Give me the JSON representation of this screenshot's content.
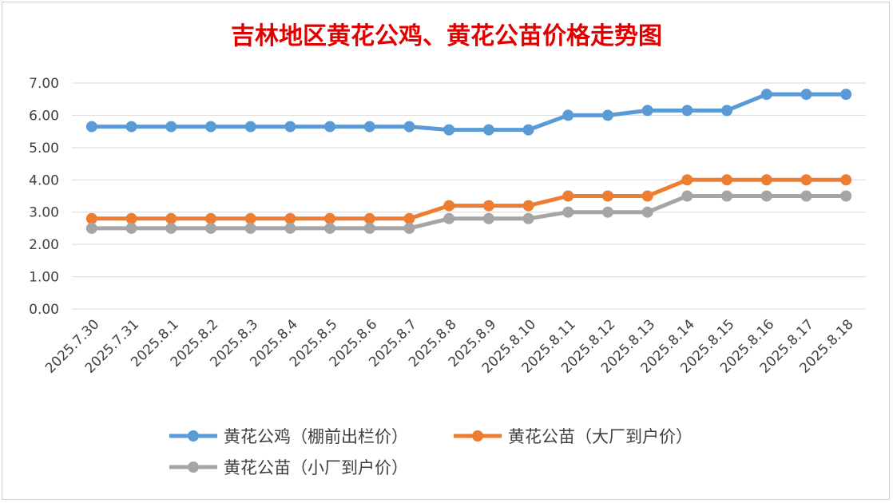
{
  "chart_data": {
    "type": "line",
    "title": "吉林地区黄花公鸡、黄花公苗价格走势图",
    "xlabel": "",
    "ylabel": "",
    "ylim": [
      0,
      7
    ],
    "y_ticks": [
      "0.00",
      "1.00",
      "2.00",
      "3.00",
      "4.00",
      "5.00",
      "6.00",
      "7.00"
    ],
    "grid": true,
    "legend_position": "bottom",
    "categories": [
      "2025.7.30",
      "2025.7.31",
      "2025.8.1",
      "2025.8.2",
      "2025.8.3",
      "2025.8.4",
      "2025.8.5",
      "2025.8.6",
      "2025.8.7",
      "2025.8.8",
      "2025.8.9",
      "2025.8.10",
      "2025.8.11",
      "2025.8.12",
      "2025.8.13",
      "2025.8.14",
      "2025.8.15",
      "2025.8.16",
      "2025.8.17",
      "2025.8.18"
    ],
    "series": [
      {
        "name": "黄花公鸡（棚前出栏价）",
        "color": "#5b9bd5",
        "values": [
          5.65,
          5.65,
          5.65,
          5.65,
          5.65,
          5.65,
          5.65,
          5.65,
          5.65,
          5.55,
          5.55,
          5.55,
          6.0,
          6.0,
          6.15,
          6.15,
          6.15,
          6.65,
          6.65,
          6.65
        ]
      },
      {
        "name": "黄花公苗（大厂到户价）",
        "color": "#ed7d31",
        "values": [
          2.8,
          2.8,
          2.8,
          2.8,
          2.8,
          2.8,
          2.8,
          2.8,
          2.8,
          3.2,
          3.2,
          3.2,
          3.5,
          3.5,
          3.5,
          4.0,
          4.0,
          4.0,
          4.0,
          4.0
        ]
      },
      {
        "name": "黄花公苗（小厂到户价）",
        "color": "#a5a5a5",
        "values": [
          2.5,
          2.5,
          2.5,
          2.5,
          2.5,
          2.5,
          2.5,
          2.5,
          2.5,
          2.8,
          2.8,
          2.8,
          3.0,
          3.0,
          3.0,
          3.5,
          3.5,
          3.5,
          3.5,
          3.5
        ]
      }
    ]
  }
}
